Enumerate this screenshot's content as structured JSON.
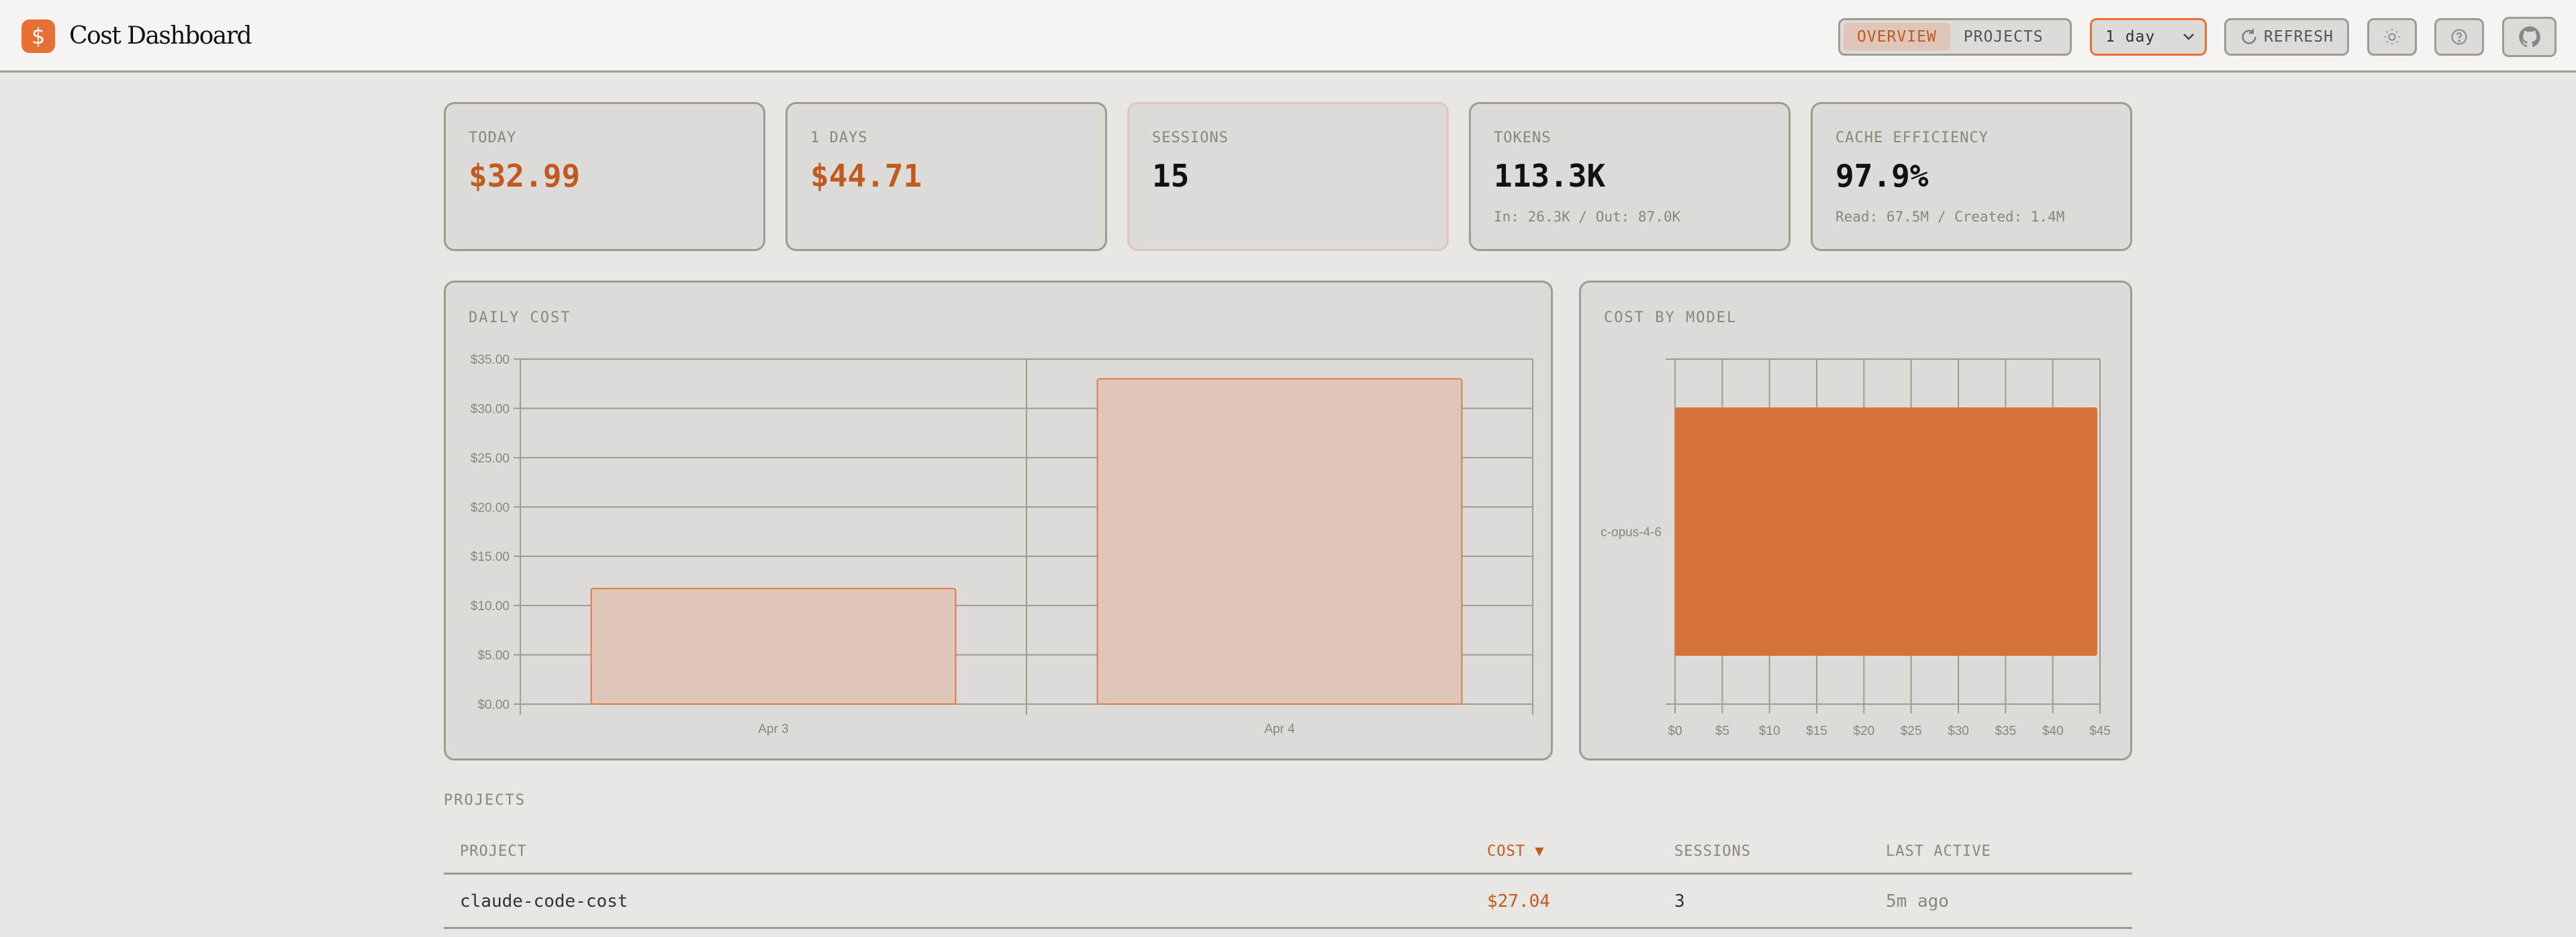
{
  "header": {
    "title": "Cost Dashboard",
    "logo_icon": "dollar-icon",
    "logo_glyph": "$",
    "tabs": [
      {
        "label": "OVERVIEW",
        "active": true
      },
      {
        "label": "PROJECTS",
        "active": false
      }
    ],
    "range_select": {
      "value": "1 day"
    },
    "refresh_label": "REFRESH",
    "icons": [
      "sun-icon",
      "help-icon",
      "github-icon"
    ]
  },
  "cards": [
    {
      "label": "TODAY",
      "value": "$32.99",
      "sub": ""
    },
    {
      "label": "1 DAYS",
      "value": "$44.71",
      "sub": ""
    },
    {
      "label": "SESSIONS",
      "value": "15",
      "sub": ""
    },
    {
      "label": "TOKENS",
      "value": "113.3K",
      "sub": "In: 26.3K / Out: 87.0K"
    },
    {
      "label": "CACHE EFFICIENCY",
      "value": "97.9%",
      "sub": "Read: 67.5M / Created: 1.4M"
    }
  ],
  "colors": {
    "accent": "#c05a20",
    "bar_fill": "#e0c6b9",
    "bar_stroke": "#e07a45",
    "model_bar": "#d4723a",
    "background": "#e8e6e2",
    "card": "#dcdbd7"
  },
  "chart_data": [
    {
      "type": "bar",
      "title": "DAILY COST",
      "categories": [
        "Apr 3",
        "Apr 4"
      ],
      "values": [
        11.72,
        32.99
      ],
      "ylim": [
        0,
        35
      ],
      "yticks": [
        "$0.00",
        "$5.00",
        "$10.00",
        "$15.00",
        "$20.00",
        "$25.00",
        "$30.00",
        "$35.00"
      ],
      "grid": true
    },
    {
      "type": "bar",
      "orientation": "horizontal",
      "title": "COST BY MODEL",
      "categories": [
        "c-opus-4-6"
      ],
      "values": [
        44.71
      ],
      "xlim": [
        0,
        45
      ],
      "xticks": [
        "$0",
        "$5",
        "$10",
        "$15",
        "$20",
        "$25",
        "$30",
        "$35",
        "$40",
        "$45"
      ],
      "grid": true
    }
  ],
  "projects": {
    "title": "PROJECTS",
    "columns": [
      "PROJECT",
      "COST ▼",
      "SESSIONS",
      "LAST ACTIVE"
    ],
    "rows": [
      {
        "project": "claude-code-cost",
        "cost": "$27.04",
        "sessions": "3",
        "last_active": "5m ago"
      }
    ]
  }
}
